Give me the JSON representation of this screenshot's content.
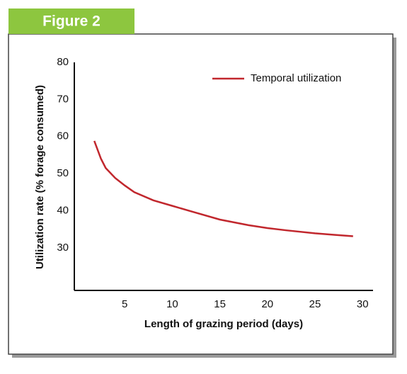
{
  "figure_label": "Figure 2",
  "chart_data": {
    "type": "line",
    "x_label": "Length of grazing period (days)",
    "y_label": "Utilization rate (% forage consumed)",
    "x": [
      1.8,
      2.5,
      3,
      4,
      5,
      6,
      8,
      10,
      12,
      15,
      18,
      20,
      22,
      25,
      27,
      29
    ],
    "series": [
      {
        "name": "Temporal utilization",
        "color": "#c1272d",
        "values": [
          58.8,
          54,
          51.5,
          48.8,
          46.8,
          45,
          42.8,
          41.3,
          39.8,
          37.6,
          36.1,
          35.3,
          34.7,
          33.9,
          33.5,
          33.1
        ]
      }
    ],
    "xlim": [
      -0.3,
      31.1
    ],
    "xticks": [
      5,
      10,
      15,
      20,
      25,
      30
    ],
    "ylim": [
      18.5,
      80
    ],
    "yticks": [
      30,
      40,
      50,
      60,
      70,
      80
    ],
    "grid": false,
    "legend": "top-right"
  }
}
